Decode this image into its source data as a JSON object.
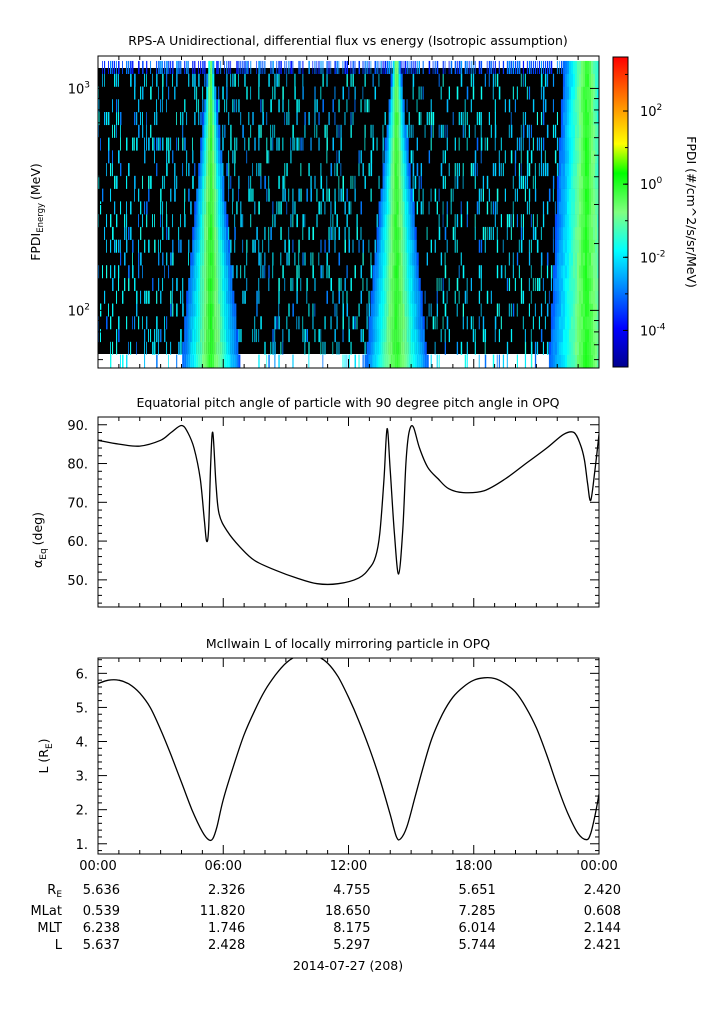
{
  "chart_data": [
    {
      "type": "heatmap",
      "title": "RPS-A Unidirectional, differential flux vs energy (Isotropic assumption)",
      "ylabel": "FPDI",
      "ylabel_sub": "Energy",
      "ylabel_unit": "(MeV)",
      "yscale": "log",
      "ylim": [
        55,
        1400
      ],
      "yticks": [
        {
          "value": 100,
          "base": "10",
          "exp": "2"
        },
        {
          "value": 1000,
          "base": "10",
          "exp": "3"
        }
      ],
      "xlim_hours": [
        0,
        24
      ],
      "flux_peaks": [
        {
          "center_hour": 5.4,
          "width_bottom_hours": 1.4,
          "width_top_hours": 0.15,
          "peak_value": 1.0
        },
        {
          "center_hour": 14.3,
          "width_bottom_hours": 1.5,
          "width_top_hours": 0.2,
          "peak_value": 1.0
        },
        {
          "center_hour": 23.4,
          "width_bottom_hours": 1.8,
          "width_top_hours": 1.1,
          "peak_value": 1.0
        }
      ],
      "colorbar": {
        "label": "FPDI (#/cm^2/s/sr/MeV)",
        "scale": "log",
        "range": [
          1e-05,
          3000
        ],
        "ticks": [
          {
            "value": 0.0001,
            "base": "10",
            "exp": "-4"
          },
          {
            "value": 0.01,
            "base": "10",
            "exp": "-2"
          },
          {
            "value": 1,
            "base": "10",
            "exp": "0"
          },
          {
            "value": 100,
            "base": "10",
            "exp": "2"
          }
        ]
      }
    },
    {
      "type": "line",
      "title": "Equatorial pitch angle of particle with 90 degree pitch angle in OPQ",
      "ylabel_main": "α",
      "ylabel_sub": "Eq",
      "ylabel_unit": "(deg)",
      "ylim": [
        43,
        92
      ],
      "yticks": [
        50,
        60,
        70,
        80,
        90
      ],
      "yticklabels": [
        "50.",
        "60.",
        "70.",
        "80.",
        "90."
      ],
      "x_hours": [
        0,
        1,
        2,
        3,
        3.5,
        4,
        4.3,
        4.6,
        4.9,
        5.1,
        5.2,
        5.3,
        5.4,
        5.5,
        5.65,
        5.8,
        6.2,
        6.8,
        7.5,
        8.5,
        9.5,
        10.5,
        11.5,
        12.5,
        13.0,
        13.3,
        13.5,
        13.7,
        13.85,
        14.0,
        14.2,
        14.4,
        14.6,
        14.75,
        14.9,
        15.1,
        15.4,
        15.8,
        16.3,
        16.8,
        17.5,
        18.5,
        19.5,
        20.5,
        21.5,
        22.3,
        22.8,
        23.1,
        23.3,
        23.45,
        23.6,
        23.8,
        24.0
      ],
      "y_deg": [
        86.0,
        85.0,
        84.5,
        86.0,
        88.0,
        89.8,
        88.0,
        84.0,
        76.0,
        65.0,
        60.0,
        63.0,
        80.0,
        88.0,
        75.0,
        67.0,
        62.5,
        58.5,
        55.0,
        52.5,
        50.5,
        49.0,
        49.0,
        50.5,
        53.0,
        56.0,
        62.0,
        76.0,
        89.0,
        78.0,
        62.0,
        51.5,
        63.0,
        80.0,
        88.0,
        89.5,
        84.0,
        79.0,
        76.0,
        73.5,
        72.5,
        73.0,
        76.0,
        80.0,
        84.0,
        87.5,
        88.0,
        85.0,
        81.0,
        75.0,
        70.5,
        78.0,
        87.5
      ]
    },
    {
      "type": "line",
      "title": "McIlwain L of locally mirroring particle in OPQ",
      "ylabel_main": "L (R",
      "ylabel_sub": "E",
      "ylabel_close": ")",
      "ylim": [
        0.7,
        6.45
      ],
      "yticks": [
        1,
        2,
        3,
        4,
        5,
        6
      ],
      "yticklabels": [
        "1.",
        "2.",
        "3.",
        "4.",
        "5.",
        "6."
      ],
      "x_hours": [
        0,
        0.5,
        1.0,
        1.5,
        2.0,
        2.5,
        3.0,
        3.5,
        4.0,
        4.5,
        5.0,
        5.3,
        5.5,
        5.7,
        6.0,
        6.5,
        7.0,
        7.5,
        8.0,
        8.5,
        9.0,
        9.5,
        10.0,
        10.5,
        11.0,
        11.5,
        12.0,
        12.5,
        13.0,
        13.5,
        14.0,
        14.3,
        14.5,
        14.8,
        15.2,
        15.6,
        16.0,
        16.5,
        17.0,
        17.5,
        18.0,
        18.5,
        19.0,
        19.5,
        20.0,
        20.5,
        21.0,
        21.5,
        22.0,
        22.5,
        23.0,
        23.4,
        23.6,
        23.8,
        24.0
      ],
      "y_re": [
        5.7,
        5.8,
        5.8,
        5.68,
        5.42,
        5.0,
        4.35,
        3.6,
        2.8,
        2.0,
        1.35,
        1.12,
        1.15,
        1.5,
        2.3,
        3.3,
        4.2,
        4.9,
        5.5,
        5.95,
        6.3,
        6.5,
        6.55,
        6.5,
        6.3,
        5.9,
        5.3,
        4.6,
        3.8,
        2.9,
        1.85,
        1.2,
        1.15,
        1.5,
        2.4,
        3.3,
        4.1,
        4.8,
        5.3,
        5.6,
        5.8,
        5.87,
        5.85,
        5.7,
        5.45,
        5.0,
        4.4,
        3.6,
        2.7,
        1.9,
        1.3,
        1.12,
        1.3,
        1.8,
        2.45
      ]
    }
  ],
  "x_axis": {
    "tick_hours": [
      0,
      6,
      12,
      18,
      24
    ],
    "tick_labels": [
      "00:00",
      "06:00",
      "12:00",
      "18:00",
      "00:00"
    ],
    "date_label": "2014-07-27 (208)"
  },
  "ephemeris": {
    "rows": [
      {
        "label_main": "R",
        "label_sub": "E",
        "values": [
          "5.636",
          "2.326",
          "4.755",
          "5.651",
          "2.420"
        ]
      },
      {
        "label_main": "MLat",
        "label_sub": "",
        "values": [
          "0.539",
          "11.820",
          "18.650",
          "7.285",
          "0.608"
        ]
      },
      {
        "label_main": "MLT",
        "label_sub": "",
        "values": [
          "6.238",
          "1.746",
          "8.175",
          "6.014",
          "2.144"
        ]
      },
      {
        "label_main": "L",
        "label_sub": "",
        "values": [
          "5.637",
          "2.428",
          "5.297",
          "5.744",
          "2.421"
        ]
      }
    ]
  },
  "colors": {
    "line": "#000000",
    "background": "#ffffff",
    "spectrogram_background": "#000000"
  }
}
